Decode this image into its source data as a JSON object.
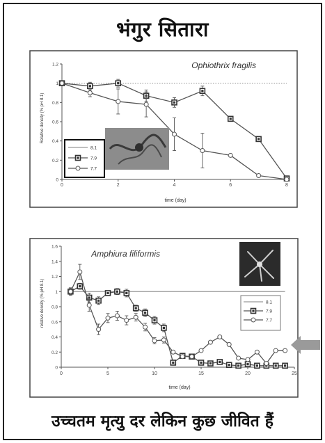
{
  "slide": {
    "title": "भंगुर सितारा",
    "caption": "उच्चतम मृत्यु दर लेकिन कुछ जीवित हैं"
  },
  "colors": {
    "frame": "#222222",
    "axis": "#555555",
    "gridline": "#999999",
    "series_line": "#555555",
    "marker_square_fill": "#333333",
    "marker_circle_fill": "#ffffff",
    "arrow": "#9a9a9a",
    "inset_photo": "#8a8a8a",
    "inset_dark": "#2b2b2b"
  },
  "icons": [
    "brittle-star-photo",
    "brittle-star-silhouette",
    "grey-arrow-pointer"
  ],
  "chart_data": [
    {
      "type": "line",
      "title": "Ophiothrix fragilis",
      "xlabel": "time (day)",
      "ylabel": "Relative density (% pH 8.1)",
      "xlim": [
        0,
        8
      ],
      "ylim": [
        0,
        1.2
      ],
      "xticks": [
        "0",
        "2",
        "4",
        "6",
        "8"
      ],
      "yticks": [
        "0",
        "0.2",
        "0.4",
        "0.6",
        "0.8",
        "1",
        "1.2"
      ],
      "legend_position": "bottom-left",
      "series": [
        {
          "name": "8.1",
          "marker": "none",
          "x": [
            0,
            8
          ],
          "y": [
            1,
            1
          ]
        },
        {
          "name": "7.9",
          "marker": "square",
          "x": [
            0,
            1,
            2,
            3,
            4,
            5,
            6,
            7,
            8
          ],
          "y": [
            1.0,
            0.97,
            1.0,
            0.87,
            0.8,
            0.92,
            0.63,
            0.42,
            0.01
          ],
          "err": [
            0,
            0.04,
            0.04,
            0.06,
            0.05,
            0.05,
            0,
            0,
            0
          ]
        },
        {
          "name": "7.7",
          "marker": "circle",
          "x": [
            0,
            1,
            2,
            3,
            4,
            5,
            6,
            7,
            8
          ],
          "y": [
            1.0,
            0.9,
            0.81,
            0.78,
            0.47,
            0.3,
            0.25,
            0.04,
            0.0
          ],
          "err": [
            0,
            0.04,
            0.13,
            0.13,
            0.17,
            0.18,
            0,
            0,
            0
          ]
        }
      ]
    },
    {
      "type": "line",
      "title": "Amphiura filiformis",
      "xlabel": "time (day)",
      "ylabel": "relative density (% pH 8.1)",
      "xlim": [
        0,
        25
      ],
      "ylim": [
        0,
        1.6
      ],
      "xticks": [
        "0",
        "5",
        "10",
        "15",
        "20",
        "25"
      ],
      "yticks": [
        "0",
        "0.2",
        "0.4",
        "0.6",
        "0.8",
        "1",
        "1.2",
        "1.4",
        "1.6"
      ],
      "legend_position": "right",
      "series": [
        {
          "name": "8.1",
          "marker": "none",
          "x": [
            1,
            24
          ],
          "y": [
            1,
            1
          ]
        },
        {
          "name": "7.9",
          "marker": "square",
          "x": [
            1,
            2,
            3,
            4,
            5,
            6,
            7,
            8,
            9,
            10,
            11,
            12,
            13,
            14,
            15,
            16,
            17,
            18,
            19,
            20,
            21,
            22,
            23,
            24
          ],
          "y": [
            1.0,
            1.07,
            0.92,
            0.88,
            0.98,
            1.0,
            0.98,
            0.78,
            0.72,
            0.62,
            0.52,
            0.06,
            0.15,
            0.14,
            0.06,
            0.05,
            0.07,
            0.03,
            0.02,
            0.04,
            0.02,
            0.02,
            0.02,
            0.02
          ],
          "err": [
            0.05,
            0.04,
            0.06,
            0.05,
            0.03,
            0.04,
            0.05,
            0.04,
            0.05,
            0.05,
            0.05,
            0,
            0,
            0,
            0,
            0,
            0,
            0,
            0,
            0,
            0,
            0,
            0,
            0
          ]
        },
        {
          "name": "7.7",
          "marker": "circle",
          "x": [
            1,
            2,
            3,
            4,
            5,
            6,
            7,
            8,
            9,
            10,
            11,
            12,
            13,
            14,
            15,
            16,
            17,
            18,
            19,
            20,
            21,
            22,
            23,
            24
          ],
          "y": [
            1.0,
            1.26,
            0.82,
            0.5,
            0.65,
            0.68,
            0.62,
            0.66,
            0.53,
            0.35,
            0.36,
            0.2,
            0.14,
            0.14,
            0.22,
            0.33,
            0.4,
            0.3,
            0.12,
            0.1,
            0.2,
            0.05,
            0.22,
            0.22
          ],
          "err": [
            0.04,
            0.1,
            0.08,
            0.07,
            0.06,
            0.06,
            0.06,
            0.05,
            0.05,
            0.04,
            0.04,
            0,
            0,
            0,
            0,
            0,
            0,
            0,
            0,
            0,
            0,
            0,
            0,
            0
          ]
        }
      ]
    }
  ]
}
